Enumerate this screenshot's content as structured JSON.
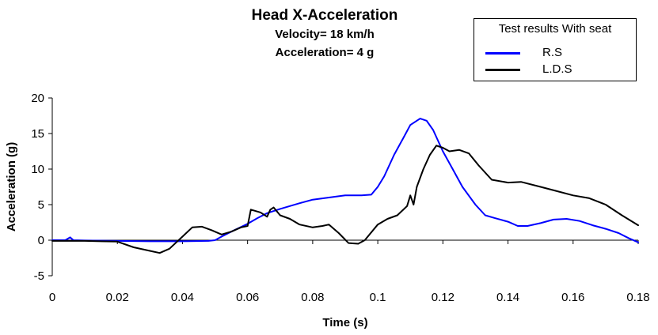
{
  "chart_data": {
    "type": "line",
    "title": "Head X-Acceleration",
    "subtitle_lines": [
      "Velocity= 18 km/h",
      "Acceleration= 4 g"
    ],
    "xlabel": "Time (s)",
    "ylabel": "Acceleration (g)",
    "xlim": [
      0,
      0.18
    ],
    "ylim": [
      -5,
      20
    ],
    "xticks": [
      0,
      0.02,
      0.04,
      0.06,
      0.08,
      0.1,
      0.12,
      0.14,
      0.16,
      0.18
    ],
    "xtick_labels": [
      "0",
      "0.02",
      "0.04",
      "0.06",
      "0.08",
      "0.1",
      "0.12",
      "0.14",
      "0.16",
      "0.18"
    ],
    "yticks": [
      -5,
      0,
      5,
      10,
      15,
      20
    ],
    "ytick_labels": [
      "-5",
      "0",
      "5",
      "10",
      "15",
      "20"
    ],
    "grid": false,
    "legend": {
      "title": "Test results With seat",
      "placement": "top-right"
    },
    "series": [
      {
        "name": "R.S",
        "color": "#0000ff",
        "points": [
          [
            0,
            0
          ],
          [
            0.004,
            0
          ],
          [
            0.0055,
            0.4
          ],
          [
            0.0065,
            0
          ],
          [
            0.01,
            -0.05
          ],
          [
            0.02,
            -0.1
          ],
          [
            0.03,
            -0.15
          ],
          [
            0.04,
            -0.15
          ],
          [
            0.048,
            -0.1
          ],
          [
            0.05,
            0
          ],
          [
            0.052,
            0.5
          ],
          [
            0.055,
            1.2
          ],
          [
            0.06,
            2.3
          ],
          [
            0.063,
            3.1
          ],
          [
            0.066,
            3.8
          ],
          [
            0.07,
            4.4
          ],
          [
            0.073,
            4.8
          ],
          [
            0.076,
            5.2
          ],
          [
            0.08,
            5.7
          ],
          [
            0.085,
            6.0
          ],
          [
            0.09,
            6.3
          ],
          [
            0.095,
            6.3
          ],
          [
            0.098,
            6.4
          ],
          [
            0.1,
            7.5
          ],
          [
            0.102,
            9.0
          ],
          [
            0.105,
            12.0
          ],
          [
            0.108,
            14.5
          ],
          [
            0.11,
            16.2
          ],
          [
            0.113,
            17.1
          ],
          [
            0.115,
            16.8
          ],
          [
            0.117,
            15.5
          ],
          [
            0.12,
            12.5
          ],
          [
            0.123,
            10.0
          ],
          [
            0.126,
            7.5
          ],
          [
            0.13,
            5.0
          ],
          [
            0.133,
            3.5
          ],
          [
            0.136,
            3.1
          ],
          [
            0.14,
            2.6
          ],
          [
            0.143,
            2.0
          ],
          [
            0.146,
            2.0
          ],
          [
            0.15,
            2.4
          ],
          [
            0.154,
            2.9
          ],
          [
            0.158,
            3.0
          ],
          [
            0.162,
            2.7
          ],
          [
            0.166,
            2.1
          ],
          [
            0.17,
            1.6
          ],
          [
            0.174,
            1.0
          ],
          [
            0.177,
            0.3
          ],
          [
            0.18,
            -0.3
          ]
        ]
      },
      {
        "name": "L.D.S",
        "color": "#000000",
        "points": [
          [
            0,
            -0.1
          ],
          [
            0.01,
            -0.1
          ],
          [
            0.02,
            -0.2
          ],
          [
            0.025,
            -1.0
          ],
          [
            0.03,
            -1.5
          ],
          [
            0.033,
            -1.8
          ],
          [
            0.036,
            -1.2
          ],
          [
            0.04,
            0.5
          ],
          [
            0.043,
            1.8
          ],
          [
            0.046,
            1.9
          ],
          [
            0.049,
            1.4
          ],
          [
            0.052,
            0.8
          ],
          [
            0.055,
            1.2
          ],
          [
            0.058,
            1.8
          ],
          [
            0.06,
            2.0
          ],
          [
            0.061,
            4.3
          ],
          [
            0.064,
            3.9
          ],
          [
            0.066,
            3.3
          ],
          [
            0.067,
            4.3
          ],
          [
            0.068,
            4.6
          ],
          [
            0.07,
            3.5
          ],
          [
            0.073,
            3.0
          ],
          [
            0.076,
            2.2
          ],
          [
            0.08,
            1.8
          ],
          [
            0.083,
            2.0
          ],
          [
            0.085,
            2.2
          ],
          [
            0.088,
            1.0
          ],
          [
            0.091,
            -0.4
          ],
          [
            0.094,
            -0.5
          ],
          [
            0.096,
            0.0
          ],
          [
            0.1,
            2.2
          ],
          [
            0.103,
            3.0
          ],
          [
            0.106,
            3.5
          ],
          [
            0.109,
            4.8
          ],
          [
            0.11,
            6.3
          ],
          [
            0.111,
            5.0
          ],
          [
            0.112,
            7.5
          ],
          [
            0.114,
            10.0
          ],
          [
            0.116,
            12.0
          ],
          [
            0.118,
            13.3
          ],
          [
            0.12,
            13.0
          ],
          [
            0.122,
            12.5
          ],
          [
            0.125,
            12.7
          ],
          [
            0.128,
            12.2
          ],
          [
            0.131,
            10.5
          ],
          [
            0.135,
            8.5
          ],
          [
            0.14,
            8.1
          ],
          [
            0.144,
            8.2
          ],
          [
            0.15,
            7.5
          ],
          [
            0.155,
            6.9
          ],
          [
            0.16,
            6.3
          ],
          [
            0.165,
            5.9
          ],
          [
            0.17,
            5.0
          ],
          [
            0.175,
            3.5
          ],
          [
            0.18,
            2.1
          ]
        ]
      }
    ]
  }
}
